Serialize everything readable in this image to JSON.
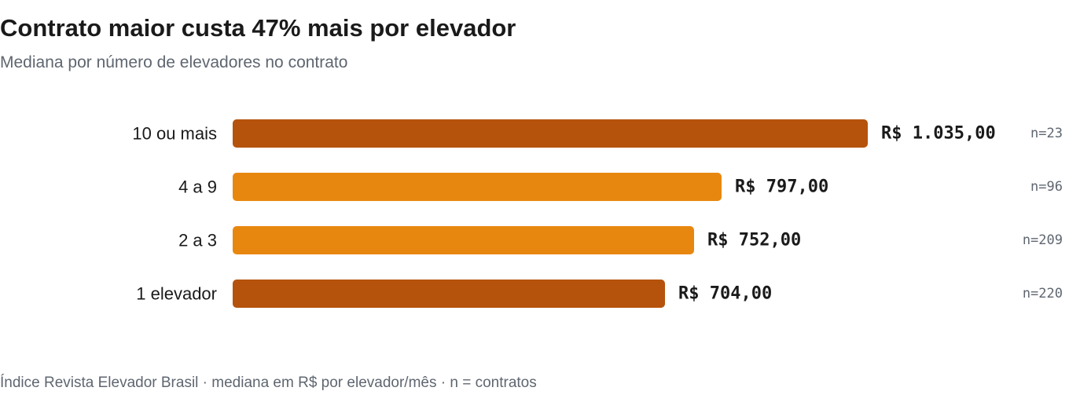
{
  "title": "Contrato maior custa 47% mais por elevador",
  "subtitle": "Mediana por número de elevadores no contrato",
  "footer": "Índice Revista Elevador Brasil · mediana em R$ por elevador/mês · n = contratos",
  "colors": {
    "dark_bar": "#b5530c",
    "light_bar": "#e8870f",
    "value_text": "#1a1a1a",
    "category_text": "#1a1a1a",
    "n_text": "#5f6670"
  },
  "chart_data": {
    "type": "bar",
    "orientation": "horizontal",
    "categories": [
      "10 ou mais",
      "4 a 9",
      "2 a 3",
      "1 elevador"
    ],
    "values": [
      1035.0,
      797.0,
      752.0,
      704.0
    ],
    "value_labels": [
      "R$ 1.035,00",
      "R$ 797,00",
      "R$ 752,00",
      "R$ 704,00"
    ],
    "n_labels": [
      "n=23",
      "n=96",
      "n=209",
      "n=220"
    ],
    "bar_colors": [
      "#b5530c",
      "#e8870f",
      "#e8870f",
      "#b5530c"
    ],
    "xlim": [
      0,
      1035
    ],
    "grid": false,
    "legend": "none"
  }
}
